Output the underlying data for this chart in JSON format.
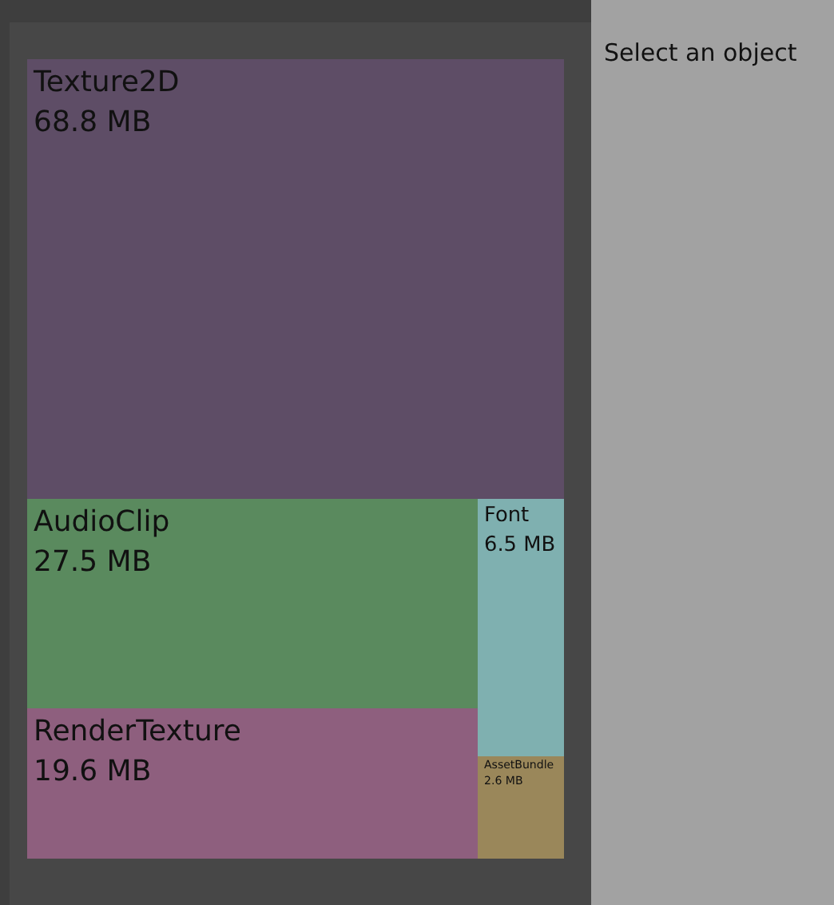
{
  "chart_data": {
    "type": "other",
    "categories": [
      "Texture2D",
      "AudioClip",
      "RenderTexture",
      "Font",
      "AssetBundle"
    ],
    "values": [
      68.8,
      27.5,
      19.6,
      6.5,
      2.6
    ],
    "value_labels": [
      "68.8 MB",
      "27.5 MB",
      "19.6 MB",
      "6.5 MB",
      "2.6 MB"
    ],
    "colors": [
      "#5e4d66",
      "#5a8a5e",
      "#8e5f7e",
      "#7fb0b0",
      "#9a875a"
    ],
    "annotations": [
      "Select an object"
    ]
  }
}
